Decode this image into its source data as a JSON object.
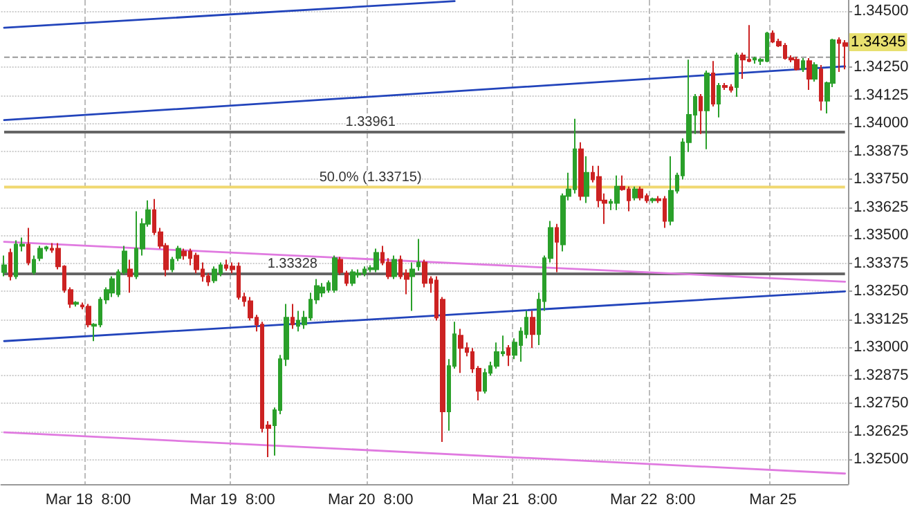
{
  "chart_data": {
    "type": "candlestick",
    "categories": [
      null,
      null,
      null,
      null,
      null,
      null,
      null,
      null,
      null,
      null,
      null,
      null,
      null,
      null,
      "Mar 18  8:00",
      null,
      null,
      null,
      null,
      null,
      null,
      null,
      null,
      null,
      null,
      null,
      null,
      null,
      null,
      null,
      null,
      null,
      null,
      null,
      null,
      null,
      null,
      null,
      "Mar 19  8:00",
      null,
      null,
      null,
      null,
      null,
      null,
      null,
      null,
      null,
      null,
      null,
      null,
      null,
      null,
      null,
      null,
      null,
      null,
      null,
      null,
      null,
      null,
      "Mar 20  8:00",
      null,
      null,
      null,
      null,
      null,
      null,
      null,
      null,
      null,
      null,
      null,
      null,
      null,
      null,
      null,
      null,
      null,
      null,
      null,
      null,
      null,
      null,
      null,
      "Mar 21  8:00",
      null,
      null,
      null,
      null,
      null,
      null,
      null,
      null,
      null,
      null,
      null,
      null,
      null,
      null,
      null,
      null,
      null,
      null,
      null,
      null,
      null,
      null,
      "Mar 22  8:00",
      null,
      null,
      null,
      null,
      null,
      null,
      null,
      null,
      null,
      null,
      null,
      null,
      null,
      null,
      null,
      null,
      null,
      null,
      null,
      "Mar 25",
      null,
      null,
      null,
      null,
      null,
      null,
      null,
      null,
      null,
      null,
      null,
      null
    ],
    "ohlc": [
      [
        1.33336,
        1.3341,
        1.33317,
        1.33367
      ],
      [
        1.33422,
        1.33441,
        1.33299,
        1.33317
      ],
      [
        1.33317,
        1.33478,
        1.33305,
        1.33459
      ],
      [
        1.33453,
        1.3349,
        1.33428,
        1.33459
      ],
      [
        1.33459,
        1.33533,
        1.33367,
        1.33379
      ],
      [
        1.33336,
        1.3341,
        1.33324,
        1.33391
      ],
      [
        1.33398,
        1.33453,
        1.33385,
        1.33441
      ],
      [
        1.33441,
        1.33453,
        1.33428,
        1.33447
      ],
      [
        1.33441,
        1.33465,
        1.33422,
        1.33435
      ],
      [
        1.33441,
        1.33465,
        1.33348,
        1.33361
      ],
      [
        1.33361,
        1.33367,
        1.33244,
        1.33256
      ],
      [
        1.33256,
        1.33268,
        1.33176,
        1.33194
      ],
      [
        1.33194,
        1.33206,
        1.33182,
        1.332
      ],
      [
        1.33188,
        1.332,
        1.3317,
        1.33182
      ],
      [
        1.33182,
        1.33194,
        1.3309,
        1.33102
      ],
      [
        1.33096,
        1.33108,
        1.33028,
        1.33102
      ],
      [
        1.33102,
        1.33225,
        1.3309,
        1.33213
      ],
      [
        1.33213,
        1.33268,
        1.33194,
        1.33256
      ],
      [
        1.33244,
        1.33317,
        1.33225,
        1.33305
      ],
      [
        1.33237,
        1.33348,
        1.33225,
        1.33336
      ],
      [
        1.33336,
        1.33453,
        1.33324,
        1.33428
      ],
      [
        1.33348,
        1.33391,
        1.33244,
        1.33317
      ],
      [
        1.33317,
        1.33607,
        1.33305,
        1.33441
      ],
      [
        1.33441,
        1.33576,
        1.3341,
        1.33551
      ],
      [
        1.33551,
        1.33656,
        1.33539,
        1.33613
      ],
      [
        1.33613,
        1.33662,
        1.33502,
        1.33514
      ],
      [
        1.33514,
        1.33533,
        1.33441,
        1.33453
      ],
      [
        1.33453,
        1.33465,
        1.33317,
        1.33348
      ],
      [
        1.33348,
        1.33404,
        1.33336,
        1.33391
      ],
      [
        1.33398,
        1.33453,
        1.33385,
        1.33441
      ],
      [
        1.33428,
        1.33441,
        1.33391,
        1.3341
      ],
      [
        1.33428,
        1.33441,
        1.33367,
        1.33398
      ],
      [
        1.3341,
        1.33422,
        1.3333,
        1.33348
      ],
      [
        1.33348,
        1.33379,
        1.33293,
        1.33317
      ],
      [
        1.33317,
        1.3333,
        1.33274,
        1.33293
      ],
      [
        1.33299,
        1.33361,
        1.33287,
        1.33348
      ],
      [
        1.3333,
        1.33379,
        1.33317,
        1.33367
      ],
      [
        1.33367,
        1.33391,
        1.33342,
        1.33354
      ],
      [
        1.33361,
        1.33379,
        1.3333,
        1.33348
      ],
      [
        1.33361,
        1.33379,
        1.33213,
        1.33225
      ],
      [
        1.33225,
        1.33244,
        1.33182,
        1.33206
      ],
      [
        1.33206,
        1.33225,
        1.3312,
        1.33133
      ],
      [
        1.33133,
        1.33145,
        1.33071,
        1.33102
      ],
      [
        1.33102,
        1.33114,
        1.32621,
        1.3264
      ],
      [
        1.32652,
        1.32671,
        1.3251,
        1.3264
      ],
      [
        1.32652,
        1.32732,
        1.32517,
        1.3272
      ],
      [
        1.3272,
        1.32966,
        1.32702,
        1.32948
      ],
      [
        1.32948,
        1.33194,
        1.32917,
        1.33133
      ],
      [
        1.33133,
        1.33194,
        1.33083,
        1.33102
      ],
      [
        1.33096,
        1.33163,
        1.33071,
        1.3312
      ],
      [
        1.33102,
        1.33163,
        1.33083,
        1.33133
      ],
      [
        1.33133,
        1.33244,
        1.3312,
        1.33213
      ],
      [
        1.33213,
        1.33305,
        1.33194,
        1.33274
      ],
      [
        1.33244,
        1.33287,
        1.33225,
        1.33268
      ],
      [
        1.33256,
        1.33299,
        1.33244,
        1.33287
      ],
      [
        1.33256,
        1.3341,
        1.33244,
        1.33398
      ],
      [
        1.33391,
        1.33404,
        1.33324,
        1.33336
      ],
      [
        1.3333,
        1.33342,
        1.33274,
        1.33287
      ],
      [
        1.33287,
        1.33348,
        1.33274,
        1.33336
      ],
      [
        1.33324,
        1.33348,
        1.33311,
        1.3333
      ],
      [
        1.3333,
        1.33361,
        1.33317,
        1.33348
      ],
      [
        1.33348,
        1.33367,
        1.33336,
        1.33354
      ],
      [
        1.33348,
        1.33441,
        1.33336,
        1.33422
      ],
      [
        1.33422,
        1.33453,
        1.33367,
        1.33379
      ],
      [
        1.33379,
        1.33398,
        1.33305,
        1.33317
      ],
      [
        1.33317,
        1.3341,
        1.33305,
        1.33391
      ],
      [
        1.33391,
        1.3341,
        1.33305,
        1.33317
      ],
      [
        1.3333,
        1.33348,
        1.33237,
        1.33305
      ],
      [
        1.33317,
        1.33379,
        1.33163,
        1.33348
      ],
      [
        1.33361,
        1.33484,
        1.33342,
        1.33379
      ],
      [
        1.33379,
        1.33391,
        1.33268,
        1.33287
      ],
      [
        1.33305,
        1.33317,
        1.33244,
        1.33287
      ],
      [
        1.33299,
        1.33317,
        1.3312,
        1.33133
      ],
      [
        1.33213,
        1.33225,
        1.32578,
        1.32714
      ],
      [
        1.32714,
        1.32948,
        1.32628,
        1.32917
      ],
      [
        1.32917,
        1.33114,
        1.32905,
        1.33059
      ],
      [
        1.33053,
        1.33083,
        1.32886,
        1.32997
      ],
      [
        1.32997,
        1.33022,
        1.3296,
        1.32979
      ],
      [
        1.32979,
        1.32997,
        1.32886,
        1.32905
      ],
      [
        1.32905,
        1.32917,
        1.32763,
        1.32806
      ],
      [
        1.32806,
        1.32905,
        1.32794,
        1.32886
      ],
      [
        1.32886,
        1.32936,
        1.32874,
        1.32917
      ],
      [
        1.32917,
        1.33022,
        1.32905,
        1.32979
      ],
      [
        1.32973,
        1.33053,
        1.3296,
        1.32979
      ],
      [
        1.32997,
        1.3301,
        1.32917,
        1.32966
      ],
      [
        1.32966,
        1.3304,
        1.32948,
        1.33022
      ],
      [
        1.3301,
        1.3309,
        1.32936,
        1.33071
      ],
      [
        1.33059,
        1.33163,
        1.3304,
        1.33133
      ],
      [
        1.33133,
        1.33163,
        1.32997,
        1.33059
      ],
      [
        1.33059,
        1.33244,
        1.3301,
        1.33213
      ],
      [
        1.33206,
        1.3341,
        1.33163,
        1.33398
      ],
      [
        1.33398,
        1.33564,
        1.33379,
        1.33533
      ],
      [
        1.33533,
        1.33551,
        1.33336,
        1.33471
      ],
      [
        1.33459,
        1.33687,
        1.33428,
        1.33675
      ],
      [
        1.33675,
        1.33779,
        1.33656,
        1.33705
      ],
      [
        1.33705,
        1.3402,
        1.33687,
        1.33884
      ],
      [
        1.33884,
        1.33915,
        1.33656,
        1.33675
      ],
      [
        1.33675,
        1.33853,
        1.33644,
        1.33779
      ],
      [
        1.33779,
        1.3381,
        1.33736,
        1.33749
      ],
      [
        1.33761,
        1.3381,
        1.33625,
        1.33656
      ],
      [
        1.33656,
        1.33687,
        1.33551,
        1.33644
      ],
      [
        1.33644,
        1.33662,
        1.33613,
        1.3365
      ],
      [
        1.33644,
        1.33767,
        1.33613,
        1.33718
      ],
      [
        1.33718,
        1.33767,
        1.33699,
        1.33705
      ],
      [
        1.33705,
        1.33718,
        1.33607,
        1.33656
      ],
      [
        1.33668,
        1.33718,
        1.33656,
        1.33705
      ],
      [
        1.33705,
        1.33718,
        1.33656,
        1.33668
      ],
      [
        1.33675,
        1.33687,
        1.33644,
        1.33656
      ],
      [
        1.33656,
        1.33668,
        1.33644,
        1.33662
      ],
      [
        1.33662,
        1.33675,
        1.33644,
        1.33656
      ],
      [
        1.33662,
        1.33675,
        1.33533,
        1.33564
      ],
      [
        1.33564,
        1.33853,
        1.33545,
        1.33699
      ],
      [
        1.33699,
        1.33779,
        1.33687,
        1.33767
      ],
      [
        1.33767,
        1.33933,
        1.33749,
        1.33915
      ],
      [
        1.33915,
        1.34284,
        1.33872,
        1.34038
      ],
      [
        1.34038,
        1.3413,
        1.33952,
        1.34118
      ],
      [
        1.34118,
        1.3413,
        1.33952,
        1.34057
      ],
      [
        1.34057,
        1.34235,
        1.33884,
        1.34223
      ],
      [
        1.34223,
        1.34278,
        1.34075,
        1.34087
      ],
      [
        1.34087,
        1.3418,
        1.34026,
        1.34167
      ],
      [
        1.34167,
        1.3418,
        1.34149,
        1.34161
      ],
      [
        1.34161,
        1.34174,
        1.34137,
        1.34149
      ],
      [
        1.34161,
        1.34315,
        1.34118,
        1.34303
      ],
      [
        1.34303,
        1.34315,
        1.34198,
        1.34284
      ],
      [
        1.34284,
        1.34438,
        1.34272,
        1.34278
      ],
      [
        1.34284,
        1.34297,
        1.34266,
        1.3429
      ],
      [
        1.34278,
        1.34291,
        1.3426,
        1.34284
      ],
      [
        1.34278,
        1.34408,
        1.34272,
        1.34401
      ],
      [
        1.34401,
        1.34414,
        1.34358,
        1.34364
      ],
      [
        1.34364,
        1.34377,
        1.3434,
        1.34346
      ],
      [
        1.34346,
        1.34358,
        1.34284,
        1.34291
      ],
      [
        1.34291,
        1.34303,
        1.34272,
        1.34284
      ],
      [
        1.34284,
        1.34297,
        1.34235,
        1.34241
      ],
      [
        1.34241,
        1.34291,
        1.34229,
        1.34278
      ],
      [
        1.34278,
        1.34291,
        1.34149,
        1.34198
      ],
      [
        1.34198,
        1.34272,
        1.34186,
        1.3426
      ],
      [
        1.34241,
        1.3426,
        1.34057,
        1.341
      ],
      [
        1.341,
        1.34186,
        1.34044,
        1.3418
      ],
      [
        1.3418,
        1.34377,
        1.34161,
        1.34371
      ],
      [
        1.34371,
        1.34383,
        1.34229,
        1.34358
      ],
      [
        1.34358,
        1.34371,
        1.34241,
        1.34345
      ]
    ],
    "colors": [
      "#2aa02a",
      "#cc2222",
      "#2aa02a",
      "#2aa02a",
      "#cc2222",
      "#2aa02a",
      "#2aa02a",
      "#2aa02a",
      "#cc2222",
      "#cc2222",
      "#cc2222",
      "#cc2222",
      "#2aa02a",
      "#cc2222",
      "#cc2222",
      "#2aa02a",
      "#2aa02a",
      "#2aa02a",
      "#2aa02a",
      "#2aa02a",
      "#2aa02a",
      "#cc2222",
      "#2aa02a",
      "#2aa02a",
      "#2aa02a",
      "#cc2222",
      "#cc2222",
      "#cc2222",
      "#2aa02a",
      "#2aa02a",
      "#cc2222",
      "#cc2222",
      "#cc2222",
      "#cc2222",
      "#cc2222",
      "#2aa02a",
      "#2aa02a",
      "#cc2222",
      "#cc2222",
      "#cc2222",
      "#cc2222",
      "#cc2222",
      "#cc2222",
      "#cc2222",
      "#cc2222",
      "#2aa02a",
      "#2aa02a",
      "#2aa02a",
      "#cc2222",
      "#2aa02a",
      "#2aa02a",
      "#2aa02a",
      "#2aa02a",
      "#2aa02a",
      "#2aa02a",
      "#2aa02a",
      "#cc2222",
      "#cc2222",
      "#2aa02a",
      "#2aa02a",
      "#2aa02a",
      "#2aa02a",
      "#2aa02a",
      "#cc2222",
      "#cc2222",
      "#2aa02a",
      "#cc2222",
      "#cc2222",
      "#2aa02a",
      "#2aa02a",
      "#cc2222",
      "#cc2222",
      "#cc2222",
      "#cc2222",
      "#2aa02a",
      "#2aa02a",
      "#cc2222",
      "#cc2222",
      "#cc2222",
      "#cc2222",
      "#2aa02a",
      "#2aa02a",
      "#2aa02a",
      "#2aa02a",
      "#cc2222",
      "#2aa02a",
      "#2aa02a",
      "#2aa02a",
      "#cc2222",
      "#2aa02a",
      "#2aa02a",
      "#2aa02a",
      "#cc2222",
      "#2aa02a",
      "#2aa02a",
      "#2aa02a",
      "#cc2222",
      "#2aa02a",
      "#cc2222",
      "#cc2222",
      "#cc2222",
      "#2aa02a",
      "#2aa02a",
      "#cc2222",
      "#cc2222",
      "#2aa02a",
      "#cc2222",
      "#cc2222",
      "#2aa02a",
      "#cc2222",
      "#cc2222",
      "#2aa02a",
      "#2aa02a",
      "#2aa02a",
      "#2aa02a",
      "#2aa02a",
      "#cc2222",
      "#2aa02a",
      "#cc2222",
      "#2aa02a",
      "#cc2222",
      "#cc2222",
      "#2aa02a",
      "#cc2222",
      "#cc2222",
      "#2aa02a",
      "#2aa02a",
      "#2aa02a",
      "#cc2222",
      "#cc2222",
      "#cc2222",
      "#cc2222",
      "#cc2222",
      "#2aa02a",
      "#cc2222",
      "#2aa02a",
      "#cc2222",
      "#2aa02a",
      "#2aa02a",
      "#cc2222",
      "#cc2222"
    ],
    "series": [
      {
        "type": "line",
        "color": "#2244bb",
        "values": [
          1.34426,
          null,
          null,
          null,
          null,
          null,
          null,
          null,
          null,
          null,
          null,
          null,
          null,
          null,
          null,
          null,
          null,
          null,
          null,
          null,
          null,
          null,
          null,
          null,
          null,
          null,
          null,
          null,
          null,
          null,
          null,
          null,
          null,
          null,
          null,
          null,
          null,
          null,
          null,
          null,
          null,
          null,
          null,
          null,
          null,
          null,
          null,
          null,
          null,
          null,
          null,
          null,
          null,
          null,
          null,
          null,
          null,
          null,
          null,
          null,
          null,
          null,
          null,
          null,
          null,
          null,
          null,
          null,
          null,
          null,
          null,
          null,
          null,
          null,
          null,
          1.34545,
          null,
          null,
          null,
          null,
          null,
          null,
          null,
          null,
          null,
          null,
          null,
          null,
          null,
          null,
          null,
          null,
          null,
          null,
          null,
          null,
          null,
          null,
          null,
          null,
          null,
          null,
          null,
          null,
          null,
          null,
          null,
          null,
          null,
          null,
          null,
          null,
          null,
          null,
          null,
          null,
          null,
          null,
          null,
          null,
          null,
          null,
          null,
          null,
          null,
          null,
          null,
          null,
          null,
          null,
          null,
          null,
          null,
          null,
          null,
          null,
          null,
          null,
          null,
          null,
          null
        ]
      },
      {
        "type": "line",
        "color": "#2244bb",
        "values": [
          1.34014,
          null,
          null,
          null,
          null,
          null,
          null,
          null,
          null,
          null,
          null,
          null,
          null,
          null,
          null,
          null,
          null,
          null,
          null,
          null,
          null,
          null,
          null,
          null,
          null,
          null,
          null,
          null,
          null,
          null,
          null,
          null,
          null,
          null,
          null,
          null,
          null,
          null,
          null,
          null,
          null,
          null,
          null,
          null,
          null,
          null,
          null,
          null,
          null,
          null,
          null,
          null,
          null,
          null,
          null,
          null,
          null,
          null,
          null,
          null,
          null,
          null,
          null,
          null,
          null,
          null,
          null,
          null,
          null,
          null,
          null,
          null,
          null,
          null,
          null,
          null,
          null,
          null,
          null,
          null,
          null,
          null,
          null,
          null,
          null,
          null,
          null,
          null,
          null,
          null,
          null,
          null,
          null,
          null,
          null,
          null,
          null,
          null,
          null,
          null,
          null,
          null,
          null,
          null,
          null,
          null,
          null,
          null,
          null,
          null,
          null,
          null,
          null,
          null,
          null,
          null,
          null,
          null,
          null,
          null,
          null,
          null,
          null,
          null,
          null,
          null,
          null,
          null,
          null,
          null,
          null,
          null,
          null,
          null,
          null,
          null,
          null,
          null,
          null,
          null,
          1.34254
        ]
      },
      {
        "type": "line",
        "color": "#2244bb",
        "values": [
          1.33028,
          null,
          null,
          null,
          null,
          null,
          null,
          null,
          null,
          null,
          null,
          null,
          null,
          null,
          null,
          null,
          null,
          null,
          null,
          null,
          null,
          null,
          null,
          null,
          null,
          null,
          null,
          null,
          null,
          null,
          null,
          null,
          null,
          null,
          null,
          null,
          null,
          null,
          null,
          null,
          null,
          null,
          null,
          null,
          null,
          null,
          null,
          null,
          null,
          null,
          null,
          null,
          null,
          null,
          null,
          null,
          null,
          null,
          null,
          null,
          null,
          null,
          null,
          null,
          null,
          null,
          null,
          null,
          null,
          null,
          null,
          null,
          null,
          null,
          null,
          null,
          null,
          null,
          null,
          null,
          null,
          null,
          null,
          null,
          null,
          null,
          null,
          null,
          null,
          null,
          null,
          null,
          null,
          null,
          null,
          null,
          null,
          null,
          null,
          null,
          null,
          null,
          null,
          null,
          null,
          null,
          null,
          null,
          null,
          null,
          null,
          null,
          null,
          null,
          null,
          null,
          null,
          null,
          null,
          null,
          null,
          null,
          null,
          null,
          null,
          null,
          null,
          null,
          null,
          null,
          null,
          null,
          null,
          null,
          null,
          null,
          null,
          null,
          null,
          null,
          1.3325
        ]
      },
      {
        "type": "line",
        "color": "#e07ae0",
        "values": [
          1.33471,
          null,
          null,
          null,
          null,
          null,
          null,
          null,
          null,
          null,
          null,
          null,
          null,
          null,
          null,
          null,
          null,
          null,
          null,
          null,
          null,
          null,
          null,
          null,
          null,
          null,
          null,
          null,
          null,
          null,
          null,
          null,
          null,
          null,
          null,
          null,
          null,
          null,
          null,
          null,
          null,
          null,
          null,
          null,
          null,
          null,
          null,
          null,
          null,
          null,
          null,
          null,
          null,
          null,
          null,
          null,
          null,
          null,
          null,
          null,
          null,
          null,
          null,
          null,
          null,
          null,
          null,
          null,
          null,
          null,
          null,
          null,
          null,
          null,
          null,
          null,
          null,
          null,
          null,
          null,
          null,
          null,
          null,
          null,
          null,
          null,
          null,
          null,
          null,
          null,
          null,
          null,
          null,
          null,
          null,
          null,
          null,
          null,
          null,
          null,
          null,
          null,
          null,
          null,
          null,
          null,
          null,
          null,
          null,
          null,
          null,
          null,
          null,
          null,
          null,
          null,
          null,
          null,
          null,
          null,
          null,
          null,
          null,
          null,
          null,
          null,
          null,
          null,
          null,
          null,
          null,
          null,
          null,
          null,
          null,
          null,
          null,
          null,
          null,
          null,
          1.33293
        ]
      },
      {
        "type": "line",
        "color": "#e07ae0",
        "values": [
          1.32621,
          null,
          null,
          null,
          null,
          null,
          null,
          null,
          null,
          null,
          null,
          null,
          null,
          null,
          null,
          null,
          null,
          null,
          null,
          null,
          null,
          null,
          null,
          null,
          null,
          null,
          null,
          null,
          null,
          null,
          null,
          null,
          null,
          null,
          null,
          null,
          null,
          null,
          null,
          null,
          null,
          null,
          null,
          null,
          null,
          null,
          null,
          null,
          null,
          null,
          null,
          null,
          null,
          null,
          null,
          null,
          null,
          null,
          null,
          null,
          null,
          null,
          null,
          null,
          null,
          null,
          null,
          null,
          null,
          null,
          null,
          null,
          null,
          null,
          null,
          null,
          null,
          null,
          null,
          null,
          null,
          null,
          null,
          null,
          null,
          null,
          null,
          null,
          null,
          null,
          null,
          null,
          null,
          null,
          null,
          null,
          null,
          null,
          null,
          null,
          null,
          null,
          null,
          null,
          null,
          null,
          null,
          null,
          null,
          null,
          null,
          null,
          null,
          null,
          null,
          null,
          null,
          null,
          null,
          null,
          null,
          null,
          null,
          null,
          null,
          null,
          null,
          null,
          null,
          null,
          null,
          null,
          null,
          null,
          null,
          null,
          null,
          null,
          null,
          null,
          1.32437
        ]
      }
    ],
    "ref_lines": [
      {
        "axis": "y",
        "value": 1.33961,
        "label": "1.33961",
        "color": "#666666"
      },
      {
        "axis": "y",
        "value": 1.33715,
        "label": "50.0% (1.33715)",
        "color": "#f0d870"
      },
      {
        "axis": "y",
        "value": 1.33328,
        "label": "1.33328",
        "color": "#666666"
      },
      {
        "axis": "y",
        "value": 1.34295,
        "color": "#999999",
        "line_style": "dashed"
      }
    ],
    "annotations": [
      "1.34345"
    ],
    "ylim": [
      1.3239,
      1.3455
    ],
    "yticks": [
      {
        "value": 1.325,
        "label": "1.32500"
      },
      {
        "value": 1.32625,
        "label": "1.32625"
      },
      {
        "value": 1.3275,
        "label": "1.32750"
      },
      {
        "value": 1.32875,
        "label": "1.32875"
      },
      {
        "value": 1.33,
        "label": "1.33000"
      },
      {
        "value": 1.33125,
        "label": "1.33125"
      },
      {
        "value": 1.3325,
        "label": "1.33250"
      },
      {
        "value": 1.33375,
        "label": "1.33375"
      },
      {
        "value": 1.335,
        "label": "1.33500"
      },
      {
        "value": 1.33625,
        "label": "1.33625"
      },
      {
        "value": 1.3375,
        "label": "1.33750"
      },
      {
        "value": 1.33875,
        "label": "1.33875"
      },
      {
        "value": 1.34,
        "label": "1.34000"
      },
      {
        "value": 1.34125,
        "label": "1.34125"
      },
      {
        "value": 1.3425,
        "label": "1.34250"
      },
      {
        "value": 1.345,
        "label": "1.34500"
      }
    ],
    "grid": true
  }
}
